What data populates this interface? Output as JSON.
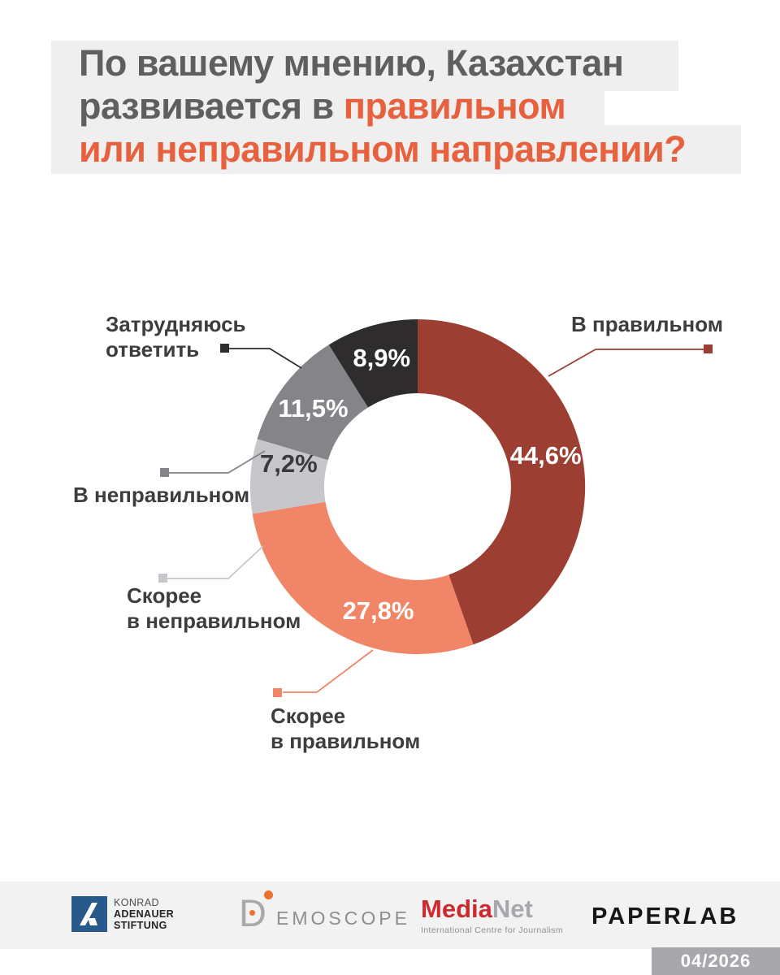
{
  "title": {
    "line1": "По вашему мнению, Казахстан",
    "line2_gray": "развивается в",
    "line2_orange": "правильном",
    "line3": "или неправильном направлении?"
  },
  "colors": {
    "title_gray": "#5f5f62",
    "accent_orange": "#e8613e",
    "title_block_bg": "#efefef",
    "footer_band_bg": "#f2f2f2",
    "badge_bg": "#a8a8ac"
  },
  "chart_data": {
    "type": "pie",
    "subtype": "donut",
    "title": "По вашему мнению, Казахстан развивается в правильном или неправильном направлении?",
    "direction": "clockwise",
    "start_angle_deg": 0,
    "series": [
      {
        "name": "В правильном",
        "value": 44.6,
        "label": "44,6%",
        "color": "#9d3e32",
        "label_color": "#ffffff"
      },
      {
        "name": "Скорее в правильном",
        "value": 27.8,
        "label": "27,8%",
        "color": "#f08567",
        "label_color": "#ffffff"
      },
      {
        "name": "Скорее в неправильном",
        "value": 7.2,
        "label": "7,2%",
        "color": "#c7c6ca",
        "label_color": "#3a393b"
      },
      {
        "name": "В неправильном",
        "value": 11.5,
        "label": "11,5%",
        "color": "#858489",
        "label_color": "#ffffff"
      },
      {
        "name": "Затрудняюсь ответить",
        "value": 8.9,
        "label": "8,9%",
        "color": "#2e2c2d",
        "label_color": "#ffffff"
      }
    ]
  },
  "legend": {
    "v_pravilnom": [
      "В правильном"
    ],
    "skoree_v_pravilnom": [
      "Скорее",
      "в правильном"
    ],
    "skoree_v_nepravilnom": [
      "Скорее",
      "в неправильном"
    ],
    "v_nepravilnom": [
      "В неправильном"
    ],
    "zatrudnyayus": [
      "Затрудняюсь",
      "ответить"
    ]
  },
  "footer": {
    "kas": {
      "line1": "KONRAD",
      "line2": "ADENAUER",
      "line3": "STIFTUNG"
    },
    "demoscope": {
      "d": "D",
      "rest": "EMOSCOPE"
    },
    "medianet": {
      "part1": "Media",
      "part2": "Net",
      "tagline": "International Centre for Journalism"
    },
    "paperlab": {
      "p1": "PAPER",
      "p2": "L",
      "p3": "AB"
    },
    "date_badge": "04/2026"
  }
}
